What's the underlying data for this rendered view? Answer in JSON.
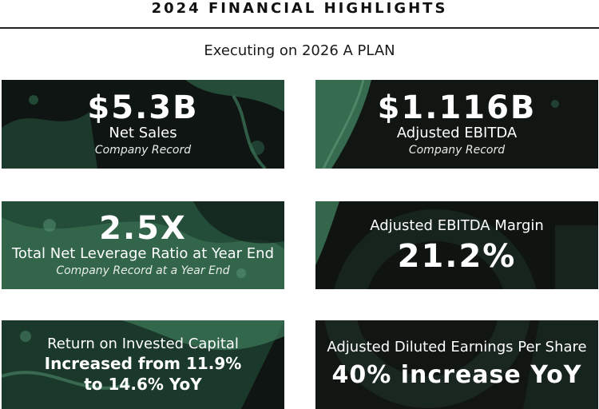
{
  "header": {
    "title": "2024 FINANCIAL HIGHLIGHTS",
    "subtitle": "Executing on 2026 A PLAN"
  },
  "cards": {
    "net_sales": {
      "value": "$5.3B",
      "label": "Net Sales",
      "note": "Company Record"
    },
    "ebitda": {
      "value": "$1.116B",
      "label": "Adjusted EBITDA",
      "note": "Company Record"
    },
    "leverage": {
      "value": "2.5X",
      "label": "Total Net Leverage Ratio at Year End",
      "note": "Company Record at a Year End"
    },
    "margin": {
      "label": "Adjusted EBITDA Margin",
      "value": "21.2%"
    },
    "roic": {
      "label": "Return on Invested Capital",
      "line1": "Increased from 11.9%",
      "line2": "to 14.6% YoY"
    },
    "eps": {
      "label": "Adjusted Diluted Earnings Per Share",
      "value": "40% increase YoY"
    }
  },
  "colors": {
    "card_dark": "#101612",
    "card_green": "#2e5a44",
    "text": "#ffffff"
  }
}
